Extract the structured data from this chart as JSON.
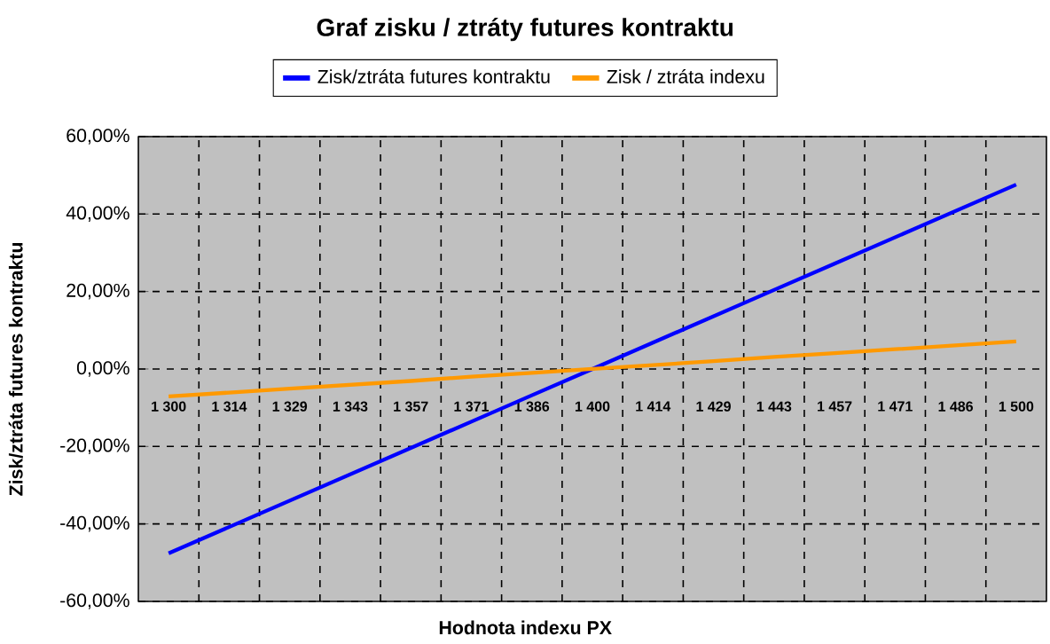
{
  "chart_data": {
    "type": "line",
    "title": "Graf zisku / ztráty futures kontraktu",
    "xlabel": "Hodnota indexu PX",
    "ylabel": "Zisk/ztráta futures kontraktu",
    "categories": [
      "1 300",
      "1 314",
      "1 329",
      "1 343",
      "1 357",
      "1 371",
      "1 386",
      "1 400",
      "1 414",
      "1 429",
      "1 443",
      "1 457",
      "1 471",
      "1 486",
      "1 500"
    ],
    "series": [
      {
        "name": "Zisk/ztráta futures kontraktu",
        "color": "#0000ff",
        "values": [
          -47.6,
          -40.8,
          -34.0,
          -27.2,
          -20.4,
          -13.6,
          -6.8,
          0,
          6.8,
          13.6,
          20.4,
          27.2,
          34.0,
          40.8,
          47.6
        ]
      },
      {
        "name": "Zisk / ztráta indexu",
        "color": "#ff9900",
        "values": [
          -7.1,
          -6.1,
          -5.1,
          -4.1,
          -3.1,
          -2.0,
          -1.0,
          0,
          1.0,
          2.0,
          3.1,
          4.1,
          5.1,
          6.1,
          7.1
        ]
      }
    ],
    "ylim": [
      -60,
      60
    ],
    "yticks": [
      {
        "value": -60,
        "label": "-60,00%"
      },
      {
        "value": -40,
        "label": "-40,00%"
      },
      {
        "value": -20,
        "label": "-20,00%"
      },
      {
        "value": 0,
        "label": "0,00%"
      },
      {
        "value": 20,
        "label": "20,00%"
      },
      {
        "value": 40,
        "label": "40,00%"
      },
      {
        "value": 60,
        "label": "60,00%"
      }
    ],
    "grid": true,
    "legend": "top",
    "marker": "none",
    "line_style": "solid"
  }
}
